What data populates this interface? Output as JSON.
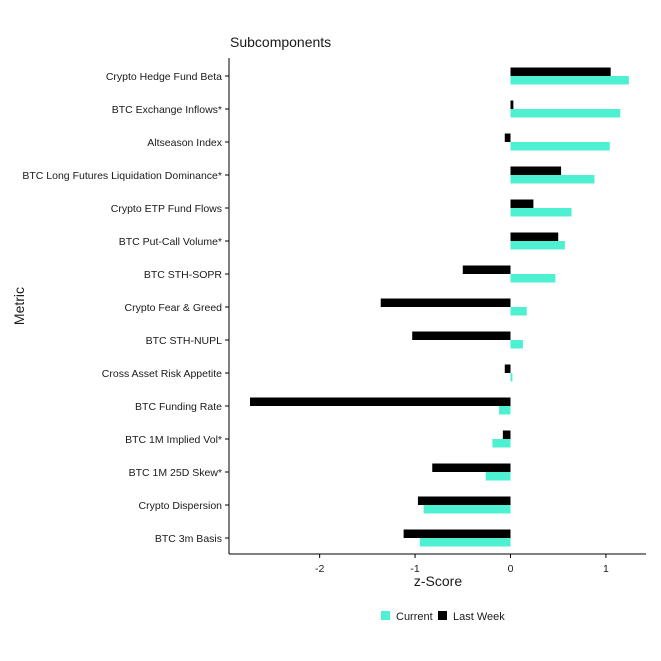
{
  "chart_data": {
    "type": "bar",
    "orientation": "horizontal",
    "title": "Subcomponents",
    "xlabel": "z-Score",
    "ylabel": "Metric",
    "xlim": [
      -2.95,
      1.42
    ],
    "x_ticks": [
      -2,
      -1,
      0,
      1
    ],
    "grid": false,
    "legend_position": "bottom",
    "categories": [
      "Crypto Hedge Fund Beta",
      "BTC Exchange Inflows*",
      "Altseason Index",
      "BTC Long Futures Liquidation Dominance*",
      "Crypto ETP Fund Flows",
      "BTC Put-Call Volume*",
      "BTC STH-SOPR",
      "Crypto Fear & Greed",
      "BTC STH-NUPL",
      "Cross Asset Risk Appetite",
      "BTC Funding Rate",
      "BTC 1M Implied Vol*",
      "BTC 1M 25D Skew*",
      "Crypto Dispersion",
      "BTC 3m Basis"
    ],
    "series": [
      {
        "name": "Current",
        "color": "#4ef0d2",
        "values": [
          1.24,
          1.15,
          1.04,
          0.88,
          0.64,
          0.57,
          0.47,
          0.17,
          0.13,
          0.02,
          -0.12,
          -0.19,
          -0.26,
          -0.91,
          -0.95
        ]
      },
      {
        "name": "Last Week",
        "color": "#000000",
        "values": [
          1.05,
          0.03,
          -0.06,
          0.53,
          0.24,
          0.5,
          -0.5,
          -1.36,
          -1.03,
          -0.06,
          -2.73,
          -0.08,
          -0.82,
          -0.97,
          -1.12
        ]
      }
    ]
  }
}
